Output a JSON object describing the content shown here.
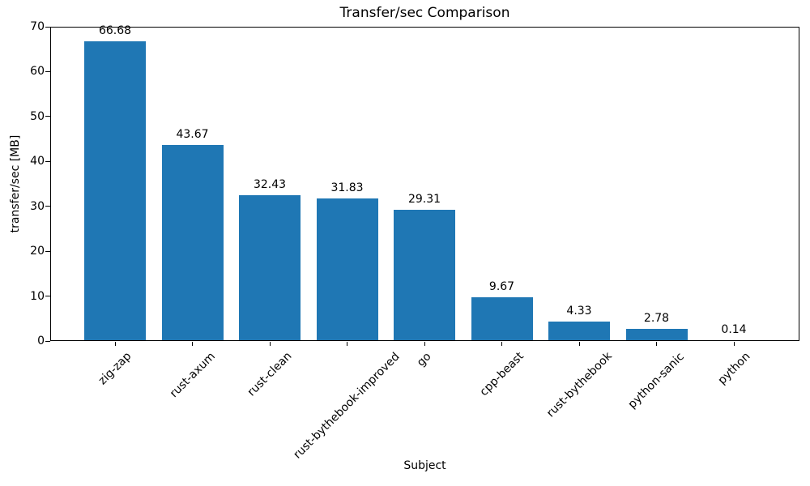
{
  "chart_data": {
    "type": "bar",
    "title": "Transfer/sec Comparison",
    "xlabel": "Subject",
    "ylabel": "transfer/sec [MB]",
    "categories": [
      "zig-zap",
      "rust-axum",
      "rust-clean",
      "rust-bythebook-improved",
      "go",
      "cpp-beast",
      "rust-bythebook",
      "python-sanic",
      "python"
    ],
    "values": [
      66.68,
      43.67,
      32.43,
      31.83,
      29.31,
      9.67,
      4.33,
      2.78,
      0.14
    ],
    "value_labels": [
      "66.68",
      "43.67",
      "32.43",
      "31.83",
      "29.31",
      "9.67",
      "4.33",
      "2.78",
      "0.14"
    ],
    "ylim": [
      0,
      70
    ],
    "yticks": [
      0,
      10,
      20,
      30,
      40,
      50,
      60,
      70
    ],
    "bar_color": "#1f77b4",
    "grid": false,
    "legend": null,
    "x_tick_rotation_deg": 45
  }
}
